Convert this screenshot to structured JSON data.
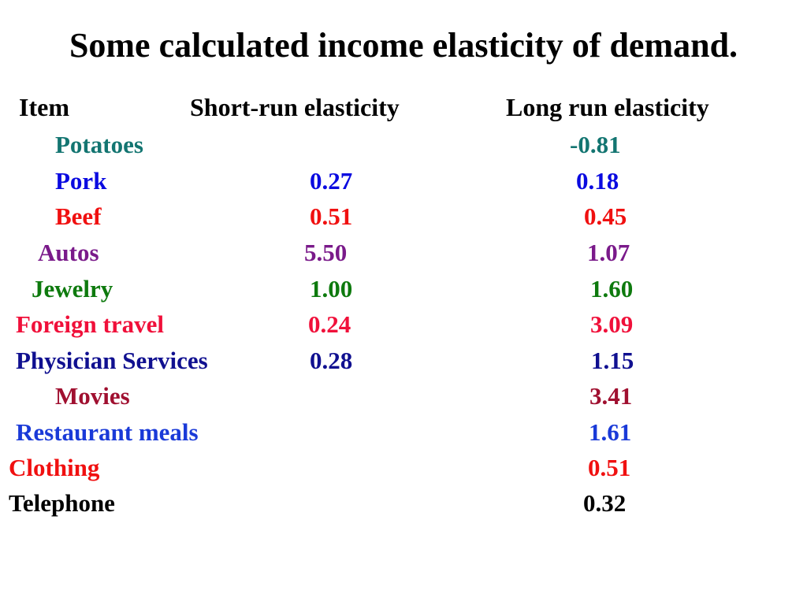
{
  "title": "Some calculated income elasticity of demand.",
  "headers": {
    "item": "Item",
    "short_run": "Short-run elasticity",
    "long_run": "Long run elasticity"
  },
  "rows": [
    {
      "item": "Potatoes",
      "short_run": "",
      "long_run": "-0.81",
      "color": "#137571"
    },
    {
      "item": "Pork",
      "short_run": "0.27",
      "long_run": "0.18",
      "color": "#0a0ae0"
    },
    {
      "item": "Beef",
      "short_run": "0.51",
      "long_run": "0.45",
      "color": "#f01010"
    },
    {
      "item": "Autos",
      "short_run": "5.50",
      "long_run": "1.07",
      "color": "#7a1a8a"
    },
    {
      "item": "Jewelry",
      "short_run": "1.00",
      "long_run": "1.60",
      "color": "#0e7a0e"
    },
    {
      "item": "Foreign travel",
      "short_run": "0.24",
      "long_run": "3.09",
      "color": "#f0103a"
    },
    {
      "item": "Physician Services",
      "short_run": "0.28",
      "long_run": "1.15",
      "color": "#101090"
    },
    {
      "item": "Movies",
      "short_run": "",
      "long_run": "3.41",
      "color": "#a01030"
    },
    {
      "item": "Restaurant meals",
      "short_run": "",
      "long_run": "1.61",
      "color": "#1a3ad8"
    },
    {
      "item": "Clothing",
      "short_run": "",
      "long_run": "0.51",
      "color": "#f01010"
    },
    {
      "item": "Telephone",
      "short_run": "",
      "long_run": "0.32",
      "color": "#000000"
    }
  ]
}
